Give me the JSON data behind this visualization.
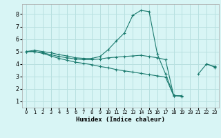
{
  "xlabel": "Humidex (Indice chaleur)",
  "ylabel": "",
  "bg_color": "#d8f5f5",
  "grid_color": "#b8e0e0",
  "line_color": "#1a7a6e",
  "xlim": [
    -0.5,
    23.5
  ],
  "ylim": [
    0.5,
    8.8
  ],
  "xticks": [
    0,
    1,
    2,
    3,
    4,
    5,
    6,
    7,
    8,
    9,
    10,
    11,
    12,
    13,
    14,
    15,
    16,
    17,
    18,
    19,
    20,
    21,
    22,
    23
  ],
  "yticks": [
    1,
    2,
    3,
    4,
    5,
    6,
    7,
    8
  ],
  "series": [
    {
      "x": [
        0,
        1,
        2,
        3,
        4,
        5,
        6,
        7,
        8,
        9,
        10,
        11,
        12,
        13,
        14,
        15,
        16,
        17,
        18,
        19,
        20,
        21,
        22,
        23
      ],
      "y": [
        5.0,
        5.1,
        5.0,
        4.9,
        4.75,
        4.65,
        4.5,
        4.45,
        4.45,
        4.6,
        5.15,
        5.85,
        6.5,
        7.9,
        8.3,
        8.2,
        4.8,
        3.2,
        1.5,
        1.4,
        null,
        3.2,
        4.0,
        3.8
      ]
    },
    {
      "x": [
        0,
        1,
        2,
        3,
        4,
        5,
        6,
        7,
        8,
        9,
        10,
        11,
        12,
        13,
        14,
        15,
        16,
        17,
        18,
        19,
        20,
        21,
        22,
        23
      ],
      "y": [
        5.0,
        5.0,
        4.9,
        4.75,
        4.6,
        4.5,
        4.4,
        4.35,
        4.35,
        4.4,
        4.5,
        4.55,
        4.6,
        4.65,
        4.7,
        4.6,
        4.5,
        4.35,
        1.45,
        1.45,
        null,
        null,
        4.0,
        3.75
      ]
    },
    {
      "x": [
        0,
        1,
        2,
        3,
        4,
        5,
        6,
        7,
        8,
        9,
        10,
        11,
        12,
        13,
        14,
        15,
        16,
        17,
        18,
        19,
        20,
        21,
        22,
        23
      ],
      "y": [
        5.0,
        5.0,
        4.85,
        4.65,
        4.45,
        4.3,
        4.15,
        4.05,
        3.95,
        3.8,
        3.7,
        3.55,
        3.45,
        3.35,
        3.25,
        3.15,
        3.05,
        2.95,
        1.45,
        1.45,
        null,
        null,
        null,
        3.7
      ]
    }
  ]
}
